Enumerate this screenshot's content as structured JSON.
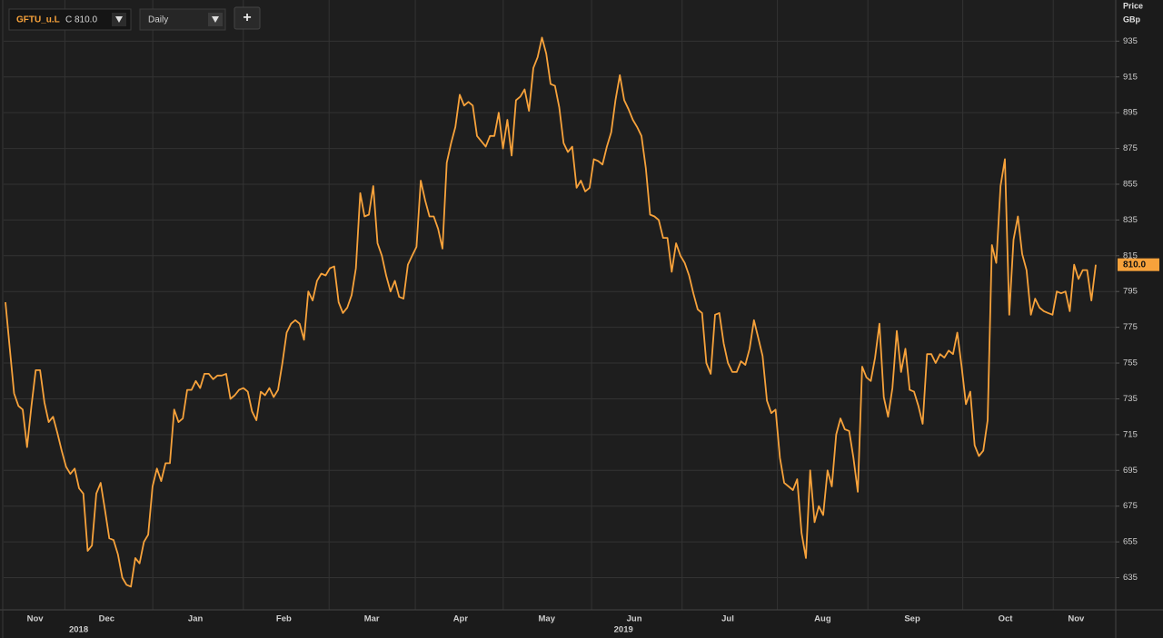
{
  "toolbar": {
    "symbol": "GFTU_u.L",
    "close_label": "C 810.0",
    "interval": "Daily",
    "add_button": "+"
  },
  "chart_data": {
    "type": "line",
    "y_axis_title": "Price",
    "y_axis_unit": "GBp",
    "last_label": "810.0",
    "color": "#f7a23b",
    "grid": true,
    "ylim": [
      617,
      958
    ],
    "yticks": [
      635,
      655,
      675,
      695,
      715,
      735,
      755,
      775,
      795,
      815,
      835,
      855,
      875,
      895,
      915,
      935
    ],
    "xlim": [
      -1,
      257
    ],
    "xticks": [
      {
        "value": 6.3,
        "label": "Nov"
      },
      {
        "value": 22.9,
        "label": "Dec"
      },
      {
        "value": 43.5,
        "label": "Jan"
      },
      {
        "value": 64,
        "label": "Feb"
      },
      {
        "value": 84.4,
        "label": "Mar"
      },
      {
        "value": 105,
        "label": "Apr"
      },
      {
        "value": 125,
        "label": "May"
      },
      {
        "value": 145.3,
        "label": "Jun"
      },
      {
        "value": 167,
        "label": "Jul"
      },
      {
        "value": 189,
        "label": "Aug"
      },
      {
        "value": 209.8,
        "label": "Sep"
      },
      {
        "value": 231.4,
        "label": "Oct"
      },
      {
        "value": 247.8,
        "label": "Nov"
      }
    ],
    "year_ticks": [
      {
        "value": 16.4,
        "label": "2018"
      },
      {
        "value": 142.8,
        "label": "2019"
      }
    ],
    "xgrid": [
      13.2,
      33.6,
      54.6,
      74.5,
      94.5,
      114.9,
      135.4,
      156.4,
      178.5,
      199.5,
      221.5,
      242.5
    ],
    "values": [
      789,
      763,
      738,
      731,
      729,
      708,
      731,
      751,
      751,
      733,
      722,
      725,
      716,
      706,
      697,
      693,
      696,
      685,
      682,
      650,
      653,
      682,
      688,
      673,
      657,
      656,
      648,
      635,
      631,
      630,
      646,
      643,
      655,
      659,
      686,
      696,
      689,
      699,
      699,
      729,
      722,
      724,
      740,
      740,
      745,
      741,
      749,
      749,
      746,
      748,
      748,
      749,
      735,
      737,
      740,
      741,
      739,
      728,
      723,
      739,
      737,
      741,
      736,
      740,
      755,
      772,
      777,
      779,
      777,
      768,
      795,
      790,
      801,
      805,
      804,
      808,
      809,
      789,
      783,
      786,
      793,
      808,
      850,
      837,
      838,
      854,
      822,
      815,
      804,
      795,
      801,
      792,
      791,
      810,
      815,
      820,
      857,
      846,
      837,
      837,
      830,
      819,
      867,
      878,
      887,
      905,
      899,
      901,
      899,
      882,
      879,
      876,
      882,
      882,
      895,
      875,
      891,
      871,
      902,
      904,
      908,
      896,
      920,
      926,
      937,
      928,
      911,
      910,
      898,
      878,
      873,
      876,
      853,
      857,
      851,
      853,
      869,
      868,
      866,
      876,
      884,
      902,
      916,
      902,
      897,
      891,
      887,
      882,
      864,
      838,
      837,
      835,
      825,
      825,
      806,
      822,
      815,
      811,
      804,
      794,
      785,
      783,
      755,
      749,
      782,
      783,
      766,
      755,
      750,
      750,
      756,
      754,
      763,
      779,
      769,
      759,
      734,
      727,
      729,
      702,
      688,
      686,
      684,
      690,
      660,
      646,
      695,
      666,
      675,
      670,
      695,
      686,
      715,
      724,
      718,
      717,
      702,
      683,
      753,
      747,
      745,
      758,
      777,
      736,
      725,
      741,
      773,
      750,
      763,
      740,
      739,
      731,
      721,
      760,
      760,
      755,
      760,
      758,
      762,
      760,
      772,
      753,
      732,
      739,
      709,
      703,
      706,
      723,
      821,
      811,
      854,
      869,
      782,
      824,
      837,
      816,
      807,
      782,
      791,
      786,
      784,
      783,
      782,
      795,
      794,
      795,
      784,
      810,
      802,
      807,
      807,
      790,
      810
    ]
  }
}
